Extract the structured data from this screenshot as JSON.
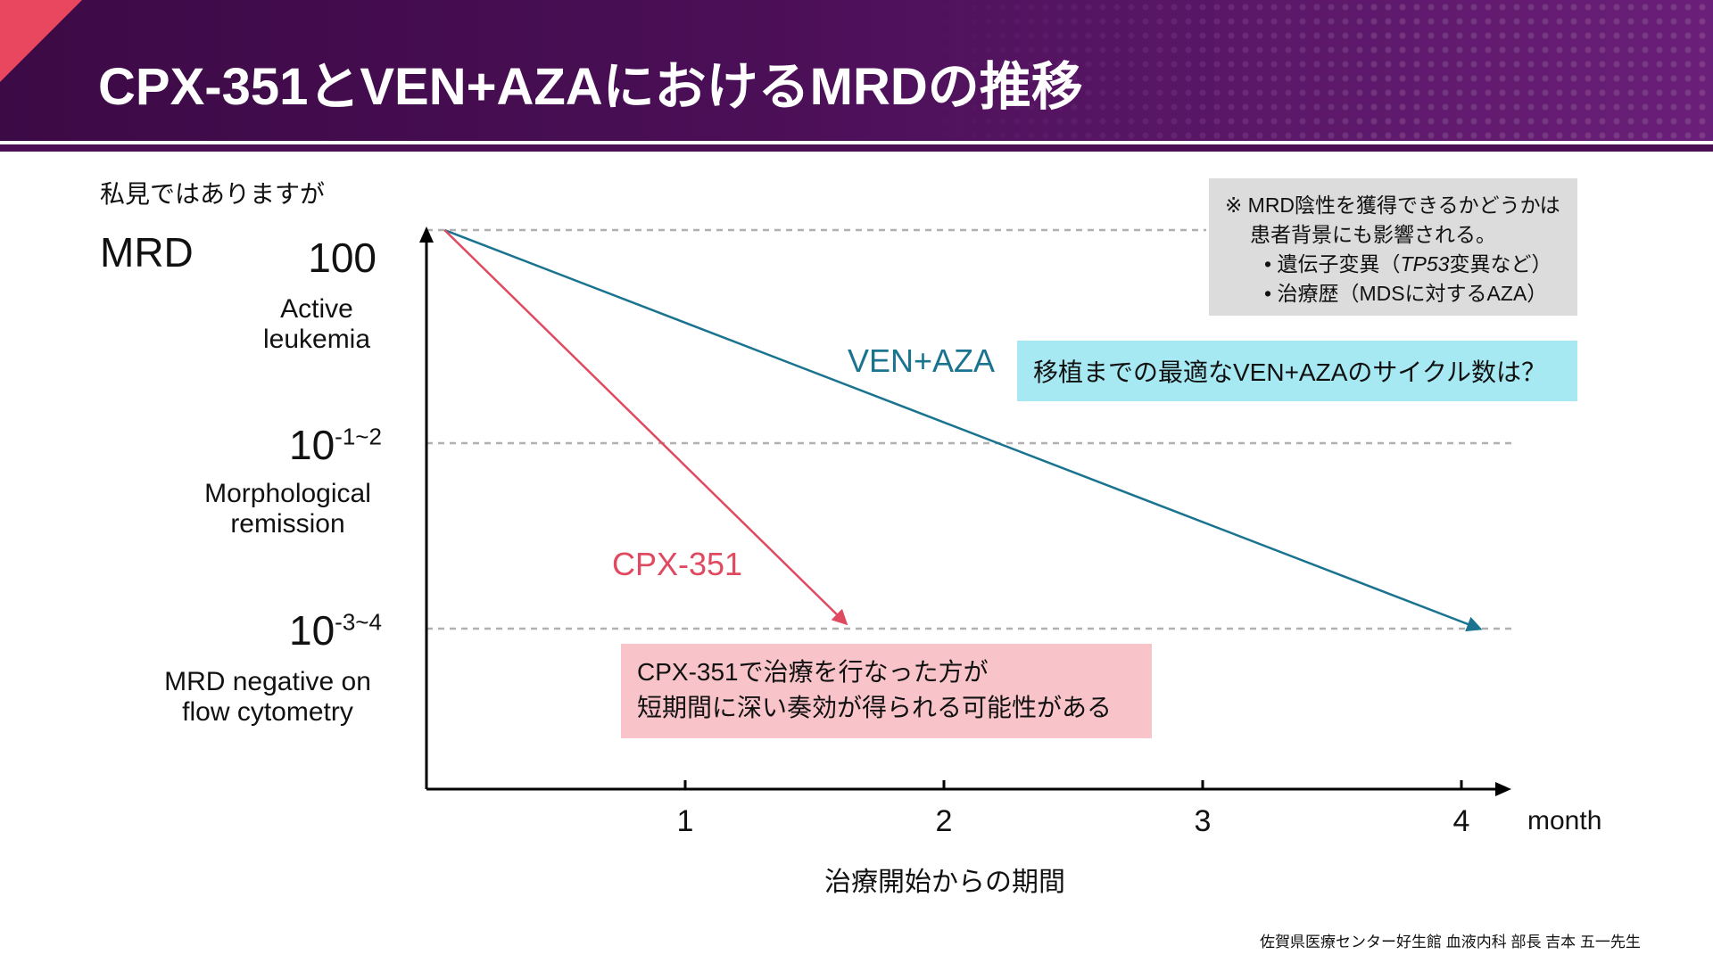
{
  "title": "CPX-351とVEN+AZAにおけるMRDの推移",
  "subtitle": "私見ではありますが",
  "note": {
    "line1": "※ MRD陰性を獲得できるかどうかは",
    "line2": "患者背景にも影響される。",
    "bullet1_pre": "• 遺伝子変異（",
    "bullet1_italic": "TP53",
    "bullet1_post": "変異など）",
    "bullet2": "• 治療歴（MDSに対するAZA）"
  },
  "question_box": "移植までの最適なVEN+AZAのサイクル数は？",
  "conclusion_box": {
    "line1": "CPX-351で治療を行なった方が",
    "line2": "短期間に深い奏効が得られる可能性がある"
  },
  "credit": "佐賀県医療センター好生館 血液内科 部長 吉本 五一先生",
  "colors": {
    "ven_aza": "#1a7490",
    "cpx351": "#e04a60",
    "header": "#4b0f57",
    "gridline": "#b0b0b0"
  },
  "chart_data": {
    "type": "line",
    "ylabel": "MRD",
    "xlabel": "治療開始からの期間",
    "x_unit": "month",
    "xlim": [
      0,
      4.2
    ],
    "x_ticks": [
      {
        "value": 1,
        "label": "1"
      },
      {
        "value": 2,
        "label": "2"
      },
      {
        "value": 3,
        "label": "3"
      },
      {
        "value": 4,
        "label": "4"
      }
    ],
    "y_levels": [
      {
        "level": 0,
        "main": "100",
        "sup": "",
        "desc_line1": "Active",
        "desc_line2": "leukemia"
      },
      {
        "level": 1,
        "main": "10",
        "sup": "-1~2",
        "desc_line1": "Morphological",
        "desc_line2": "remission"
      },
      {
        "level": 2,
        "main": "10",
        "sup": "-3~4",
        "desc_line1": "MRD negative on",
        "desc_line2": "flow cytometry"
      }
    ],
    "series": [
      {
        "name": "VEN+AZA",
        "points": [
          {
            "x": 0.07,
            "level": 0
          },
          {
            "x": 4.07,
            "level": 2
          }
        ]
      },
      {
        "name": "CPX-351",
        "points": [
          {
            "x": 0.07,
            "level": 0
          },
          {
            "x": 1.62,
            "level": 1.97
          }
        ]
      }
    ]
  }
}
